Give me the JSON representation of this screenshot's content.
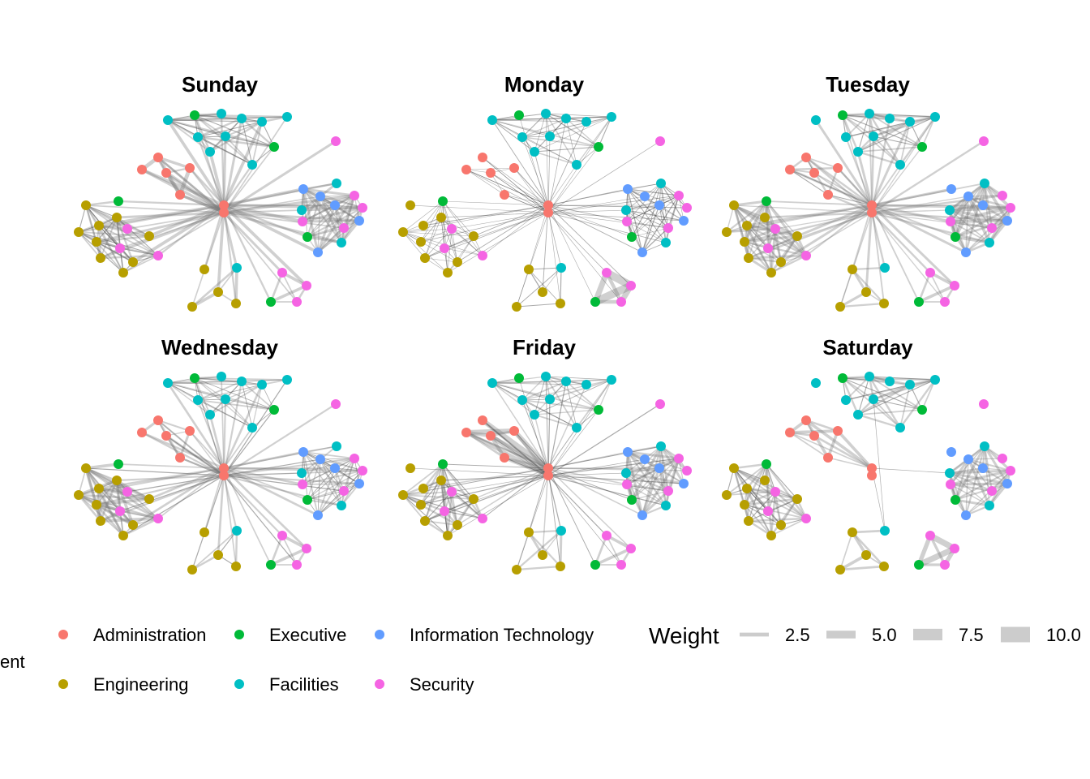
{
  "chart_data": {
    "type": "network",
    "title": "",
    "legend": {
      "department_title": "ent",
      "departments": [
        {
          "name": "Administration",
          "color": "#F8766D"
        },
        {
          "name": "Engineering",
          "color": "#B79F00"
        },
        {
          "name": "Executive",
          "color": "#00BA38"
        },
        {
          "name": "Facilities",
          "color": "#00BFC4"
        },
        {
          "name": "Information Technology",
          "color": "#619CFF"
        },
        {
          "name": "Security",
          "color": "#F564E3"
        }
      ],
      "weight_title": "Weight",
      "weight_breaks": [
        "2.5",
        "5.0",
        "7.5",
        "10.0"
      ],
      "weight_values": [
        2.5,
        5.0,
        7.5,
        10.0
      ],
      "placement": "bottom"
    },
    "node_departments": [
      0,
      0,
      0,
      0,
      0,
      0,
      0,
      3,
      2,
      3,
      3,
      3,
      3,
      3,
      3,
      3,
      2,
      3,
      5,
      4,
      4,
      3,
      5,
      5,
      3,
      4,
      4,
      5,
      5,
      2,
      3,
      4,
      1,
      2,
      1,
      1,
      5,
      1,
      1,
      1,
      5,
      5,
      1,
      1,
      1,
      1,
      3,
      1,
      1,
      1,
      5,
      5,
      5,
      2
    ],
    "hub_nodes": [
      0,
      1
    ],
    "clusters": [
      [
        0,
        1,
        2,
        3,
        4,
        5,
        6
      ],
      [
        7,
        8,
        9,
        10,
        11,
        12,
        13,
        14,
        15,
        16,
        17
      ],
      [
        19,
        20,
        21,
        22,
        23,
        24,
        25,
        26,
        27,
        28,
        29,
        30,
        31
      ],
      [
        32,
        33,
        34,
        35,
        36,
        37,
        38,
        39,
        40,
        41,
        42,
        43,
        44
      ],
      [
        45,
        46,
        47,
        48,
        49
      ],
      [
        50,
        51,
        52,
        53
      ]
    ],
    "facets": [
      {
        "name": "Sunday",
        "hub_weight": 2.5,
        "cluster_weights": [
          4,
          2,
          2.5,
          2,
          3,
          3
        ]
      },
      {
        "name": "Monday",
        "hub_weight": 0.6,
        "cluster_weights": [
          0.5,
          1.2,
          1,
          0.5,
          1,
          8
        ]
      },
      {
        "name": "Tuesday",
        "hub_weight": 2,
        "cluster_weights": [
          2,
          2,
          3,
          2.5,
          2.5,
          3
        ]
      },
      {
        "name": "Wednesday",
        "hub_weight": 1.8,
        "cluster_weights": [
          2.5,
          1.5,
          1.5,
          3,
          2,
          3
        ]
      },
      {
        "name": "Friday",
        "hub_weight": 1,
        "cluster_weights": [
          5,
          1.5,
          2.5,
          2,
          2.5,
          3
        ]
      },
      {
        "name": "Saturday",
        "hub_weight": 0,
        "cluster_weights": [
          3,
          2,
          2.5,
          2,
          3,
          6
        ]
      }
    ]
  }
}
